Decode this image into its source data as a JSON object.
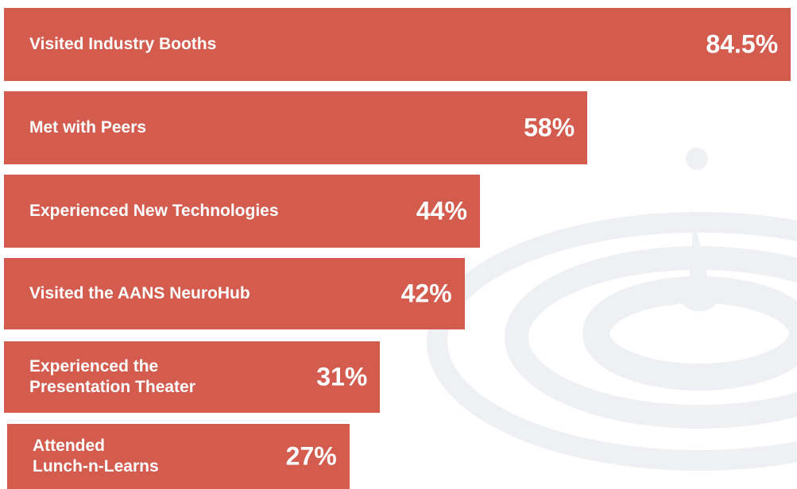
{
  "chart_data": {
    "type": "bar",
    "orientation": "horizontal",
    "categories": [
      "Visited Industry Booths",
      "Met with Peers",
      "Experienced New Technologies",
      "Visited the AANS NeuroHub",
      "Experienced the\nPresentation Theater",
      "Attended\nLunch-n-Learns"
    ],
    "values": [
      84.5,
      58,
      44,
      42,
      31,
      27
    ],
    "value_labels": [
      "84.5%",
      "58%",
      "44%",
      "42%",
      "31%",
      "27%"
    ],
    "color": "#d35c4f",
    "xlim": [
      -18,
      85
    ]
  }
}
